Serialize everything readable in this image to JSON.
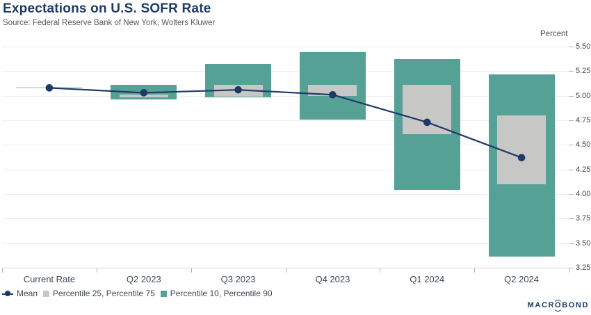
{
  "header": {
    "title": "Expectations on U.S. SOFR Rate",
    "source": "Source: Federal Reserve Bank of New York, Wolters Kluwer"
  },
  "chart_data": {
    "type": "bar",
    "subtype": "range-bars-with-mean-line",
    "categories": [
      "Current Rate",
      "Q2 2023",
      "Q3 2023",
      "Q4 2023",
      "Q1 2024",
      "Q2 2024"
    ],
    "series": [
      {
        "name": "Mean",
        "type": "line",
        "values": [
          5.08,
          5.03,
          5.06,
          5.01,
          4.73,
          4.37
        ]
      },
      {
        "name": "Percentile 25, Percentile 75",
        "type": "range",
        "ranges": [
          null,
          [
            4.98,
            5.01
          ],
          [
            4.99,
            5.11
          ],
          [
            5.0,
            5.11
          ],
          [
            4.61,
            5.11
          ],
          [
            4.1,
            4.8
          ]
        ]
      },
      {
        "name": "Percentile 10, Percentile 90",
        "type": "range",
        "ranges": [
          [
            5.08,
            5.08
          ],
          [
            4.96,
            5.11
          ],
          [
            4.98,
            5.32
          ],
          [
            4.76,
            5.44
          ],
          [
            4.04,
            5.37
          ],
          [
            3.36,
            5.22
          ]
        ]
      }
    ],
    "title": "Expectations on U.S. SOFR Rate",
    "xlabel": "",
    "ylabel": "Percent",
    "ylim": [
      3.25,
      5.5
    ],
    "ytick_step": 0.25,
    "yticks": [
      "5.50",
      "5.25",
      "5.00",
      "4.75",
      "4.50",
      "4.25",
      "4.00",
      "3.75",
      "3.50",
      "3.25"
    ],
    "grid": true,
    "legend_position": "bottom-left"
  },
  "legend": {
    "items": [
      {
        "label": "Mean",
        "marker": "line-dot"
      },
      {
        "label": "Percentile 25, Percentile 75",
        "marker": "square-gray"
      },
      {
        "label": "Percentile 10, Percentile 90",
        "marker": "square-teal"
      }
    ]
  },
  "colors": {
    "teal": "#56a196",
    "gray": "#c7c8c5",
    "navy": "#1d3a64",
    "title_text": "#1e3a68",
    "source_text": "#595959",
    "axis_text": "#3d4754",
    "gridline": "#ececec"
  },
  "branding": {
    "logo_pre": "MACR",
    "logo_o": "O",
    "logo_post": "BOND"
  }
}
